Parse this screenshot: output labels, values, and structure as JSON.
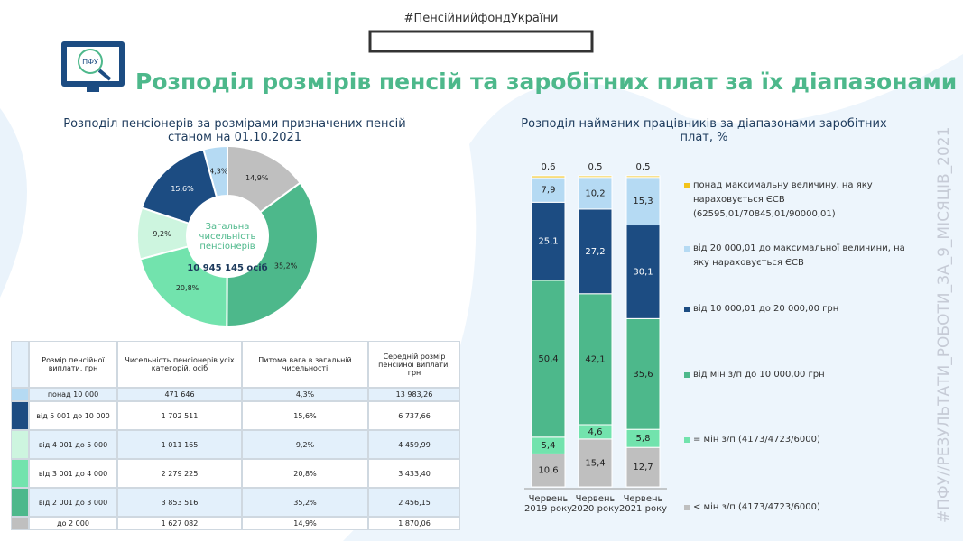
{
  "header": {
    "hashtag": "#ПенсійнийфондУкраїни",
    "title": "Розподіл розмірів пенсій та заробітних плат за їх діапазонами",
    "logo": "ПФУ",
    "side_text": "#ПФУ//РЕЗУЛЬТАТИ_РОБОТИ_ЗА_9_МІСЯЦІВ_2021"
  },
  "chart_data": [
    {
      "type": "pie",
      "title": "Розподіл пенсіонерів за розмірами призначених пенсій станом на 01.10.2021",
      "center_text": "Загальна чисельність пенсіонерів",
      "center_value": "10 945 145 осіб",
      "categories": [
        "понад 10 000",
        "від 5 001 до 10 000",
        "від 4 001 до 5 000",
        "від 3 001 до 4 000",
        "від 2 001 до 3 000",
        "до 2 000"
      ],
      "values": [
        4.3,
        15.6,
        9.2,
        20.8,
        35.2,
        14.9
      ],
      "value_labels": [
        "4,3%",
        "15,6%",
        "9,2%",
        "20,8%",
        "35,2%",
        "14,9%"
      ],
      "colors": [
        "#b5daf3",
        "#1c4c82",
        "#cdf5df",
        "#72e3ad",
        "#4db88b",
        "#bfbfbf"
      ]
    },
    {
      "type": "stacked_bar",
      "title": "Розподіл найманих працівників за діапазонами заробітних плат, %",
      "categories": [
        "Червень 2019 року",
        "Червень 2020 року",
        "Червень 2021 року"
      ],
      "ylim": [
        0,
        100
      ],
      "series": [
        {
          "name": "< мін з/п (4173/4723/6000)",
          "color": "#bfbfbf",
          "values": [
            10.6,
            15.4,
            12.7
          ],
          "value_labels": [
            "10,6",
            "15,4",
            "12,7"
          ]
        },
        {
          "name": "= мін з/п (4173/4723/6000)",
          "color": "#72e3ad",
          "values": [
            5.4,
            4.6,
            5.8
          ],
          "value_labels": [
            "5,4",
            "4,6",
            "5,8"
          ]
        },
        {
          "name": "від мін з/п до 10 000,00 грн",
          "color": "#4db88b",
          "values": [
            50.4,
            42.1,
            35.6
          ],
          "value_labels": [
            "50,4",
            "42,1",
            "35,6"
          ]
        },
        {
          "name": "від 10 000,01 до 20 000,00 грн",
          "color": "#1c4c82",
          "values": [
            25.1,
            27.2,
            30.1
          ],
          "value_labels": [
            "25,1",
            "27,2",
            "30,1"
          ]
        },
        {
          "name": "від 20 000,01 до максимальної величини, на яку нараховується ЄСВ",
          "color": "#b5daf3",
          "values": [
            7.9,
            10.2,
            15.3
          ],
          "value_labels": [
            "7,9",
            "10,2",
            "15,3"
          ]
        },
        {
          "name": "понад максимальну величину, на яку нараховується ЄСВ (62595,01/70845,01/90000,01)",
          "color": "#f2c31b",
          "values": [
            0.6,
            0.5,
            0.5
          ],
          "value_labels": [
            "0,6",
            "0,5",
            "0,5"
          ]
        }
      ]
    }
  ],
  "table": {
    "columns": [
      "Розмір пенсійної виплати, грн",
      "Чисельність пенсіонерів усіх категорій, осіб",
      "Питома вага в загальній чисельності",
      "Середній розмір пенсійної виплати, грн"
    ],
    "rows": [
      [
        "471 646",
        "13 983,26"
      ],
      [
        "1 702 511",
        "6 737,66"
      ],
      [
        "1 011 165",
        "4 459,99"
      ],
      [
        "2 279 225",
        "3 433,40"
      ],
      [
        "3 853 516",
        "2 456,15"
      ],
      [
        "1 627 082",
        "1 870,06"
      ]
    ]
  }
}
